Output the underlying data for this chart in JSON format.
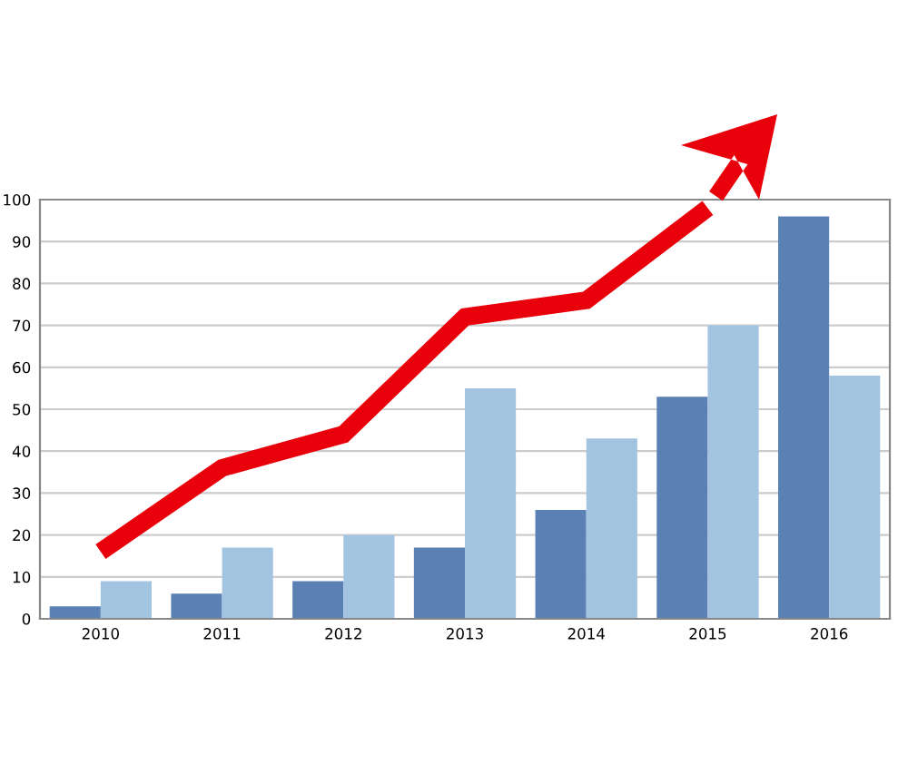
{
  "chart_data": {
    "type": "bar",
    "categories": [
      "2010",
      "2011",
      "2012",
      "2013",
      "2014",
      "2015",
      "2016"
    ],
    "series": [
      {
        "color": "#5a80b4",
        "values": [
          3,
          6,
          9,
          17,
          26,
          53,
          96
        ]
      },
      {
        "color": "#a3c4e0",
        "values": [
          9,
          17,
          20,
          55,
          43,
          70,
          58
        ]
      },
      {
        "type": "line",
        "color": "#e8000a",
        "values": [
          16,
          36,
          44,
          72,
          76,
          98,
          null
        ]
      }
    ],
    "ylim": [
      0,
      100
    ],
    "yticks": [
      0,
      10,
      20,
      30,
      40,
      50,
      60,
      70,
      80,
      90,
      100
    ],
    "grid": "y",
    "legend": false
  }
}
